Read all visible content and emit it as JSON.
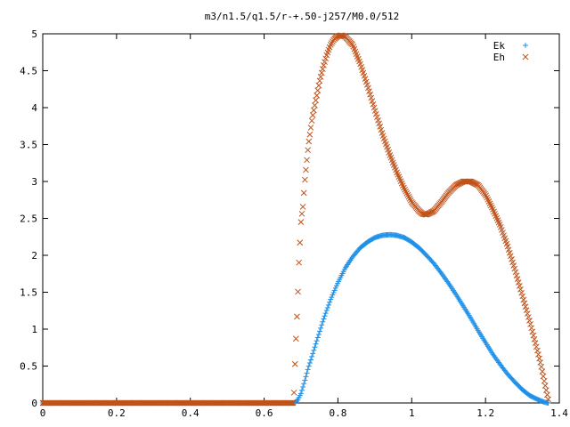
{
  "chart_data": {
    "type": "scatter",
    "title": "m3/n1.5/q1.5/r-+.50-j257/M0.0/512",
    "xlim": [
      0,
      1.4
    ],
    "ylim": [
      0,
      5
    ],
    "xticks": [
      "0",
      "0.2",
      "0.4",
      "0.6",
      "0.8",
      "1",
      "1.2",
      "1.4"
    ],
    "yticks": [
      "0",
      "0.5",
      "1",
      "1.5",
      "2",
      "2.5",
      "3",
      "3.5",
      "4",
      "4.5",
      "5"
    ],
    "grid": false,
    "legend_position": "top-right",
    "series": [
      {
        "name": "Ek",
        "marker": "plus",
        "color": "#1e90e8",
        "points": [
          [
            0,
            0
          ],
          [
            0.1,
            0
          ],
          [
            0.2,
            0
          ],
          [
            0.3,
            0
          ],
          [
            0.4,
            0
          ],
          [
            0.5,
            0
          ],
          [
            0.6,
            0
          ],
          [
            0.68,
            0
          ],
          [
            0.69,
            0.03
          ],
          [
            0.7,
            0.13
          ],
          [
            0.71,
            0.3
          ],
          [
            0.72,
            0.48
          ],
          [
            0.74,
            0.8
          ],
          [
            0.76,
            1.12
          ],
          [
            0.78,
            1.4
          ],
          [
            0.8,
            1.63
          ],
          [
            0.82,
            1.83
          ],
          [
            0.84,
            1.98
          ],
          [
            0.86,
            2.1
          ],
          [
            0.88,
            2.18
          ],
          [
            0.9,
            2.24
          ],
          [
            0.92,
            2.27
          ],
          [
            0.94,
            2.28
          ],
          [
            0.96,
            2.27
          ],
          [
            0.98,
            2.24
          ],
          [
            1.0,
            2.18
          ],
          [
            1.02,
            2.1
          ],
          [
            1.04,
            2.0
          ],
          [
            1.06,
            1.89
          ],
          [
            1.08,
            1.76
          ],
          [
            1.1,
            1.62
          ],
          [
            1.12,
            1.47
          ],
          [
            1.14,
            1.31
          ],
          [
            1.16,
            1.15
          ],
          [
            1.18,
            0.98
          ],
          [
            1.2,
            0.82
          ],
          [
            1.22,
            0.66
          ],
          [
            1.24,
            0.52
          ],
          [
            1.26,
            0.39
          ],
          [
            1.28,
            0.28
          ],
          [
            1.3,
            0.18
          ],
          [
            1.32,
            0.1
          ],
          [
            1.34,
            0.05
          ],
          [
            1.35,
            0.03
          ],
          [
            1.36,
            0.01
          ],
          [
            1.37,
            0
          ]
        ]
      },
      {
        "name": "Eh",
        "marker": "cross",
        "color": "#c0521a",
        "points": [
          [
            0,
            0
          ],
          [
            0.1,
            0
          ],
          [
            0.2,
            0
          ],
          [
            0.3,
            0
          ],
          [
            0.4,
            0
          ],
          [
            0.5,
            0
          ],
          [
            0.6,
            0
          ],
          [
            0.68,
            0
          ],
          [
            0.685,
            0.72
          ],
          [
            0.69,
            1.28
          ],
          [
            0.693,
            1.68
          ],
          [
            0.695,
            2.0
          ],
          [
            0.698,
            2.25
          ],
          [
            0.7,
            2.48
          ],
          [
            0.705,
            2.65
          ],
          [
            0.71,
            3.0
          ],
          [
            0.72,
            3.5
          ],
          [
            0.73,
            3.85
          ],
          [
            0.74,
            4.1
          ],
          [
            0.75,
            4.35
          ],
          [
            0.76,
            4.55
          ],
          [
            0.77,
            4.72
          ],
          [
            0.78,
            4.85
          ],
          [
            0.79,
            4.93
          ],
          [
            0.8,
            4.97
          ],
          [
            0.81,
            4.98
          ],
          [
            0.82,
            4.96
          ],
          [
            0.84,
            4.85
          ],
          [
            0.86,
            4.6
          ],
          [
            0.88,
            4.3
          ],
          [
            0.9,
            3.97
          ],
          [
            0.92,
            3.65
          ],
          [
            0.94,
            3.37
          ],
          [
            0.96,
            3.12
          ],
          [
            0.98,
            2.9
          ],
          [
            1.0,
            2.72
          ],
          [
            1.02,
            2.6
          ],
          [
            1.03,
            2.56
          ],
          [
            1.04,
            2.55
          ],
          [
            1.06,
            2.6
          ],
          [
            1.08,
            2.72
          ],
          [
            1.1,
            2.85
          ],
          [
            1.12,
            2.95
          ],
          [
            1.14,
            3.0
          ],
          [
            1.16,
            3.0
          ],
          [
            1.18,
            2.95
          ],
          [
            1.2,
            2.82
          ],
          [
            1.22,
            2.62
          ],
          [
            1.24,
            2.4
          ],
          [
            1.26,
            2.12
          ],
          [
            1.28,
            1.8
          ],
          [
            1.3,
            1.45
          ],
          [
            1.32,
            1.1
          ],
          [
            1.34,
            0.72
          ],
          [
            1.35,
            0.52
          ],
          [
            1.36,
            0.28
          ],
          [
            1.37,
            0.05
          ]
        ]
      }
    ]
  }
}
